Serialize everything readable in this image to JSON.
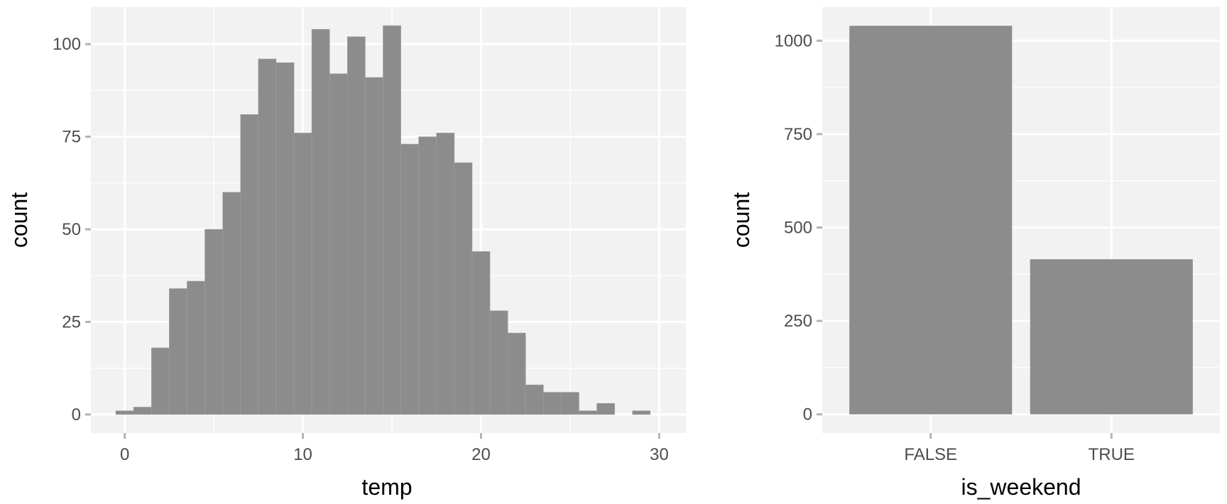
{
  "colors": {
    "bar_fill": "#8c8c8c",
    "panel_background": "#f2f2f2",
    "gridline": "#ffffff",
    "tick": "#b3b3b3",
    "tick_label": "#4d4d4d"
  },
  "chart_data": [
    {
      "type": "bar",
      "subtype": "histogram",
      "xlabel": "temp",
      "ylabel": "count",
      "xlim": [
        -1.9,
        31.5
      ],
      "ylim": [
        -5,
        110
      ],
      "grid": true,
      "bin_width": 1,
      "x_ticks": [
        0,
        10,
        20,
        30
      ],
      "x_tick_labels": [
        "0",
        "10",
        "20",
        "30"
      ],
      "y_ticks": [
        0,
        25,
        50,
        75,
        100
      ],
      "y_tick_labels": [
        "0",
        "25",
        "50",
        "75",
        "100"
      ],
      "bins": [
        {
          "x": 0,
          "count": 1
        },
        {
          "x": 1,
          "count": 2
        },
        {
          "x": 2,
          "count": 18
        },
        {
          "x": 3,
          "count": 34
        },
        {
          "x": 4,
          "count": 36
        },
        {
          "x": 5,
          "count": 50
        },
        {
          "x": 6,
          "count": 60
        },
        {
          "x": 7,
          "count": 81
        },
        {
          "x": 8,
          "count": 96
        },
        {
          "x": 9,
          "count": 95
        },
        {
          "x": 10,
          "count": 76
        },
        {
          "x": 11,
          "count": 104
        },
        {
          "x": 12,
          "count": 92
        },
        {
          "x": 13,
          "count": 102
        },
        {
          "x": 14,
          "count": 91
        },
        {
          "x": 15,
          "count": 105
        },
        {
          "x": 16,
          "count": 73
        },
        {
          "x": 17,
          "count": 75
        },
        {
          "x": 18,
          "count": 76
        },
        {
          "x": 19,
          "count": 68
        },
        {
          "x": 20,
          "count": 44
        },
        {
          "x": 21,
          "count": 28
        },
        {
          "x": 22,
          "count": 22
        },
        {
          "x": 23,
          "count": 8
        },
        {
          "x": 24,
          "count": 6
        },
        {
          "x": 25,
          "count": 6
        },
        {
          "x": 26,
          "count": 1
        },
        {
          "x": 27,
          "count": 3
        },
        {
          "x": 28,
          "count": 0
        },
        {
          "x": 29,
          "count": 1
        }
      ]
    },
    {
      "type": "bar",
      "xlabel": "is_weekend",
      "ylabel": "count",
      "ylim": [
        -50,
        1090
      ],
      "grid": true,
      "categories": [
        "FALSE",
        "TRUE"
      ],
      "values": [
        1040,
        415
      ],
      "y_ticks": [
        0,
        250,
        500,
        750,
        1000
      ],
      "y_tick_labels": [
        "0",
        "250",
        "500",
        "750",
        "1000"
      ]
    }
  ]
}
